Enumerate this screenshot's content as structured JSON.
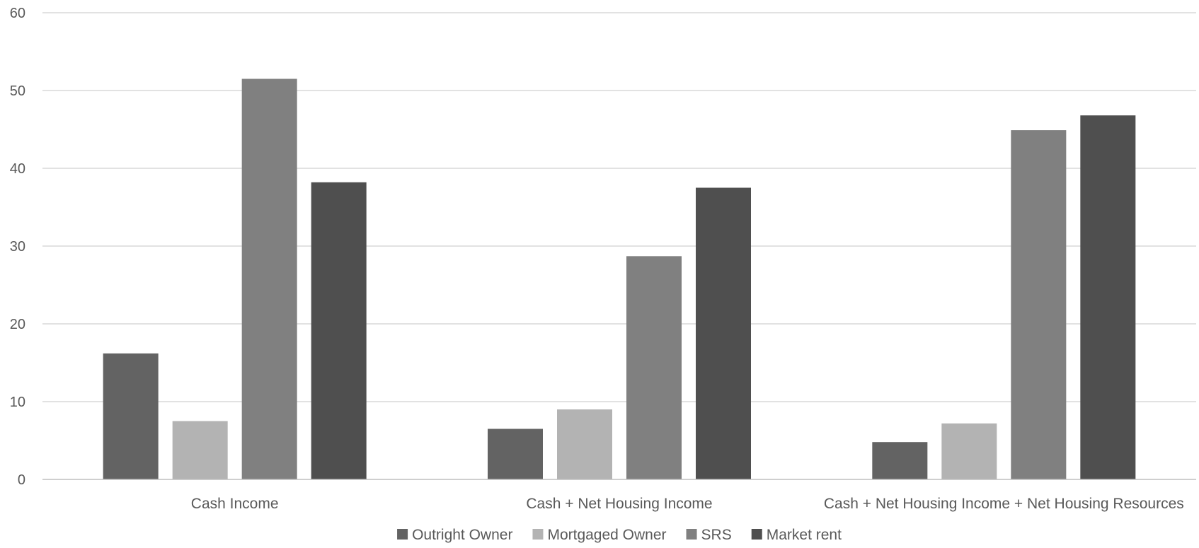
{
  "chart_data": {
    "type": "bar",
    "title": "",
    "xlabel": "",
    "ylabel": "",
    "ylim": [
      0,
      60
    ],
    "yticks": [
      0,
      10,
      20,
      30,
      40,
      50,
      60
    ],
    "grid": true,
    "legend_position": "bottom",
    "categories": [
      "Cash Income",
      "Cash + Net Housing Income",
      "Cash + Net Housing Income + Net Housing Resources"
    ],
    "series": [
      {
        "name": "Outright Owner",
        "color": "#636363",
        "values": [
          16.2,
          6.5,
          4.8
        ]
      },
      {
        "name": "Mortgaged Owner",
        "color": "#b3b3b3",
        "values": [
          7.5,
          9.0,
          7.2
        ]
      },
      {
        "name": "SRS",
        "color": "#808080",
        "values": [
          51.5,
          28.7,
          44.9
        ]
      },
      {
        "name": "Market rent",
        "color": "#4f4f4f",
        "values": [
          38.2,
          37.5,
          46.8
        ]
      }
    ]
  }
}
